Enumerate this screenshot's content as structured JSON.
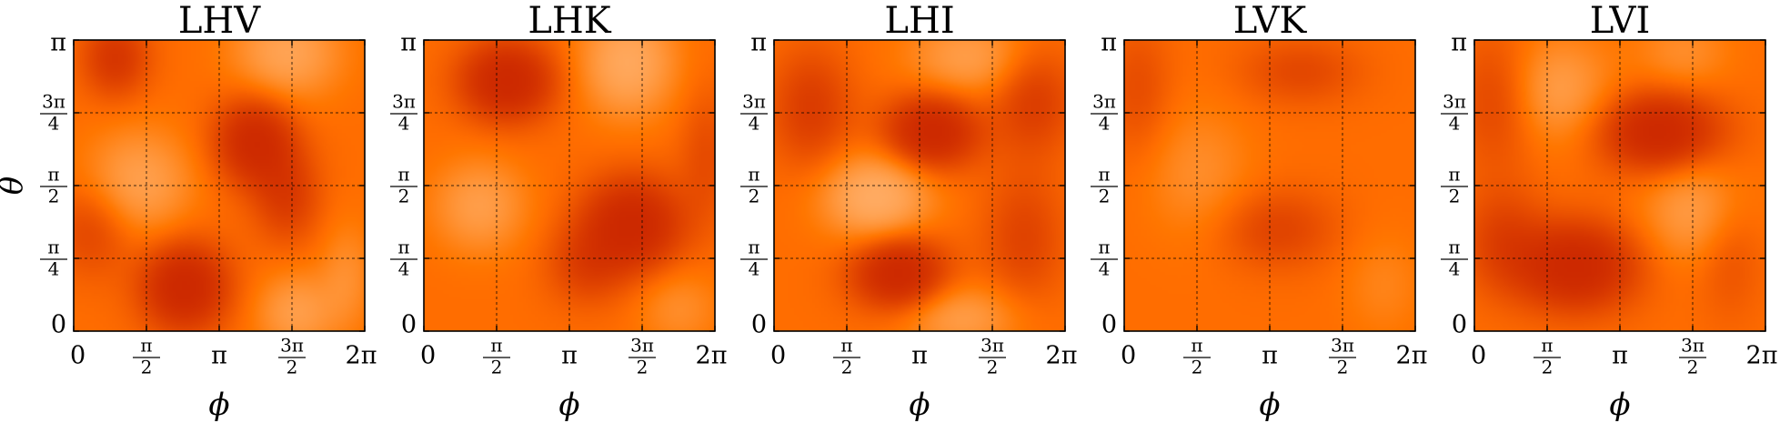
{
  "chart_data": [
    {
      "type": "heatmap",
      "title": "LHV",
      "xlabel": "ϕ",
      "ylabel": "θ",
      "xlim": [
        0,
        6.2832
      ],
      "ylim": [
        0,
        3.1416
      ],
      "xticks": [
        "0",
        "π/2",
        "π",
        "3π/2",
        "2π"
      ],
      "yticks": [
        "0",
        "π/4",
        "π/2",
        "3π/4",
        "π"
      ],
      "grid": true,
      "colormap": "gist_heat",
      "blobs": [
        {
          "x": 0.9,
          "y": 2.95,
          "v": -0.6,
          "sx": 0.5,
          "sy": 0.3
        },
        {
          "x": 3.9,
          "y": 2.05,
          "v": -0.9,
          "sx": 0.6,
          "sy": 0.33
        },
        {
          "x": 4.6,
          "y": 1.45,
          "v": -0.5,
          "sx": 0.5,
          "sy": 0.35
        },
        {
          "x": 2.4,
          "y": 0.48,
          "v": -1.0,
          "sx": 0.65,
          "sy": 0.33
        },
        {
          "x": 0.4,
          "y": 1.1,
          "v": -0.4,
          "sx": 0.6,
          "sy": 0.35
        },
        {
          "x": 1.4,
          "y": 1.6,
          "v": 0.55,
          "sx": 0.8,
          "sy": 0.4
        },
        {
          "x": 4.6,
          "y": 3.0,
          "v": 0.6,
          "sx": 0.8,
          "sy": 0.35
        },
        {
          "x": 4.8,
          "y": 0.2,
          "v": 0.5,
          "sx": 0.6,
          "sy": 0.3
        },
        {
          "x": 5.9,
          "y": 0.6,
          "v": 0.3,
          "sx": 0.4,
          "sy": 0.4
        }
      ]
    },
    {
      "type": "heatmap",
      "title": "LHK",
      "xlabel": "ϕ",
      "ylabel": "",
      "xlim": [
        0,
        6.2832
      ],
      "ylim": [
        0,
        3.1416
      ],
      "xticks": [
        "0",
        "π/2",
        "π",
        "3π/2",
        "2π"
      ],
      "yticks": [
        "0",
        "π/4",
        "π/2",
        "3π/4",
        "π"
      ],
      "grid": true,
      "colormap": "gist_heat",
      "blobs": [
        {
          "x": 1.8,
          "y": 2.7,
          "v": -1.0,
          "sx": 0.7,
          "sy": 0.3
        },
        {
          "x": 4.5,
          "y": 1.15,
          "v": -1.0,
          "sx": 0.75,
          "sy": 0.35
        },
        {
          "x": 3.5,
          "y": 0.7,
          "v": -0.4,
          "sx": 0.6,
          "sy": 0.3
        },
        {
          "x": 6.1,
          "y": 1.9,
          "v": -0.3,
          "sx": 0.4,
          "sy": 0.5
        },
        {
          "x": 4.4,
          "y": 2.9,
          "v": 0.7,
          "sx": 0.7,
          "sy": 0.4
        },
        {
          "x": 1.2,
          "y": 1.35,
          "v": 0.5,
          "sx": 0.7,
          "sy": 0.35
        },
        {
          "x": 5.5,
          "y": 0.25,
          "v": 0.3,
          "sx": 0.6,
          "sy": 0.3
        }
      ]
    },
    {
      "type": "heatmap",
      "title": "LHI",
      "xlabel": "ϕ",
      "ylabel": "",
      "xlim": [
        0,
        6.2832
      ],
      "ylim": [
        0,
        3.1416
      ],
      "xticks": [
        "0",
        "π/2",
        "π",
        "3π/2",
        "2π"
      ],
      "yticks": [
        "0",
        "π/4",
        "π/2",
        "3π/4",
        "π"
      ],
      "grid": true,
      "colormap": "gist_heat",
      "blobs": [
        {
          "x": 3.4,
          "y": 2.15,
          "v": -1.0,
          "sx": 0.7,
          "sy": 0.28
        },
        {
          "x": 2.7,
          "y": 0.62,
          "v": -1.0,
          "sx": 0.7,
          "sy": 0.28
        },
        {
          "x": 0.8,
          "y": 2.4,
          "v": -0.5,
          "sx": 0.6,
          "sy": 0.45
        },
        {
          "x": 5.6,
          "y": 2.5,
          "v": -0.5,
          "sx": 0.6,
          "sy": 0.4
        },
        {
          "x": 5.4,
          "y": 1.0,
          "v": -0.4,
          "sx": 0.6,
          "sy": 0.5
        },
        {
          "x": 2.2,
          "y": 1.45,
          "v": 0.8,
          "sx": 0.8,
          "sy": 0.32
        },
        {
          "x": 4.2,
          "y": 2.95,
          "v": 0.5,
          "sx": 0.9,
          "sy": 0.3
        },
        {
          "x": 4.0,
          "y": 0.15,
          "v": 0.5,
          "sx": 0.9,
          "sy": 0.25
        }
      ]
    },
    {
      "type": "heatmap",
      "title": "LVK",
      "xlabel": "ϕ",
      "ylabel": "",
      "xlim": [
        0,
        6.2832
      ],
      "ylim": [
        0,
        3.1416
      ],
      "xticks": [
        "0",
        "π/2",
        "π",
        "3π/2",
        "2π"
      ],
      "yticks": [
        "0",
        "π/4",
        "π/2",
        "3π/4",
        "π"
      ],
      "grid": true,
      "colormap": "gist_heat",
      "blobs": [
        {
          "x": 3.3,
          "y": 1.1,
          "v": -0.4,
          "sx": 0.9,
          "sy": 0.3
        },
        {
          "x": 3.8,
          "y": 2.8,
          "v": -0.35,
          "sx": 0.9,
          "sy": 0.25
        },
        {
          "x": 0.3,
          "y": 2.6,
          "v": -0.3,
          "sx": 0.5,
          "sy": 0.5
        },
        {
          "x": 1.6,
          "y": 1.7,
          "v": 0.3,
          "sx": 0.8,
          "sy": 0.5
        },
        {
          "x": 5.6,
          "y": 0.5,
          "v": 0.2,
          "sx": 0.6,
          "sy": 0.4
        }
      ]
    },
    {
      "type": "heatmap",
      "title": "LVI",
      "xlabel": "ϕ",
      "ylabel": "",
      "xlim": [
        0,
        6.2832
      ],
      "ylim": [
        0,
        3.1416
      ],
      "xticks": [
        "0",
        "π/2",
        "π",
        "3π/2",
        "2π"
      ],
      "yticks": [
        "0",
        "π/4",
        "π/2",
        "3π/4",
        "π"
      ],
      "grid": true,
      "colormap": "gist_heat",
      "blobs": [
        {
          "x": 4.0,
          "y": 2.15,
          "v": -1.0,
          "sx": 0.9,
          "sy": 0.3
        },
        {
          "x": 2.2,
          "y": 0.7,
          "v": -1.0,
          "sx": 0.9,
          "sy": 0.33
        },
        {
          "x": 0.6,
          "y": 1.0,
          "v": -0.4,
          "sx": 0.6,
          "sy": 0.4
        },
        {
          "x": 0.5,
          "y": 2.5,
          "v": -0.4,
          "sx": 0.6,
          "sy": 0.5
        },
        {
          "x": 5.5,
          "y": 0.9,
          "v": -0.3,
          "sx": 0.5,
          "sy": 0.5
        },
        {
          "x": 1.8,
          "y": 2.6,
          "v": 0.5,
          "sx": 0.8,
          "sy": 0.4
        },
        {
          "x": 4.8,
          "y": 1.3,
          "v": 0.5,
          "sx": 0.8,
          "sy": 0.4
        },
        {
          "x": 4.5,
          "y": 3.0,
          "v": 0.3,
          "sx": 0.7,
          "sy": 0.3
        }
      ]
    }
  ]
}
